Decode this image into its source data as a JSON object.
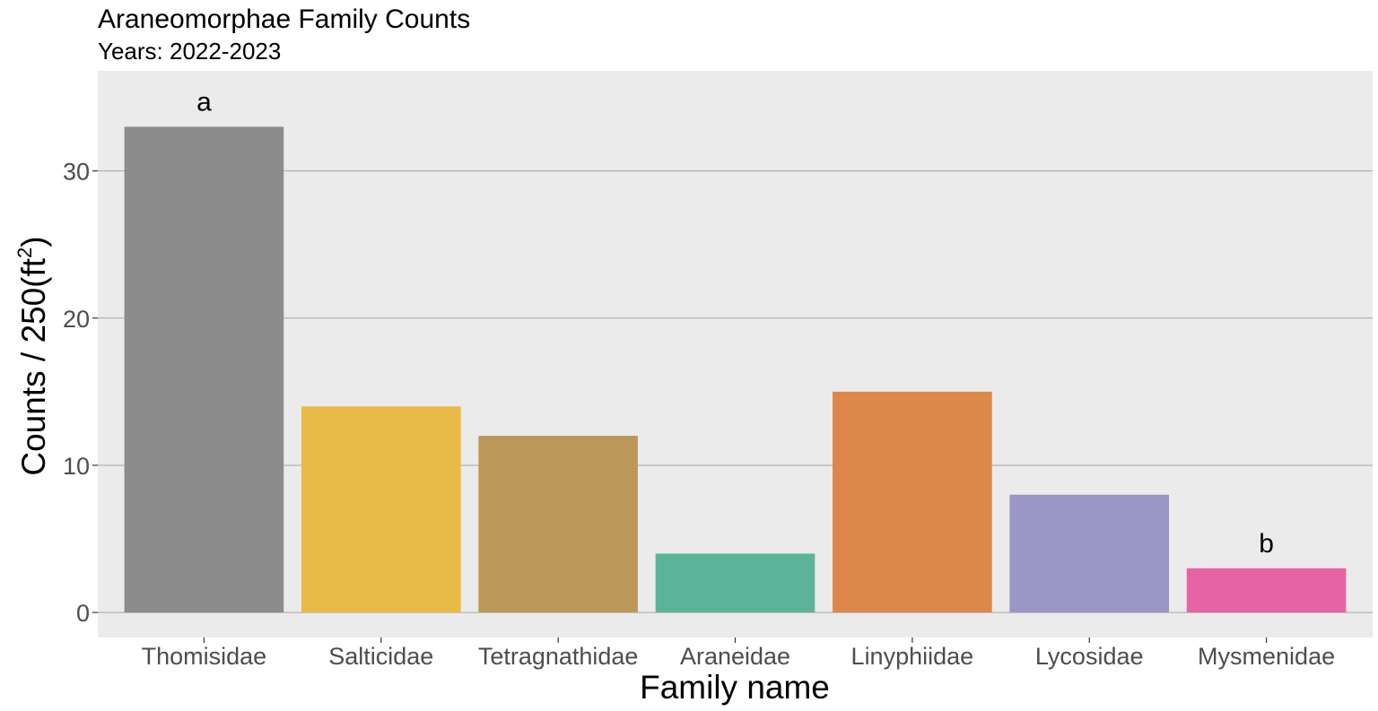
{
  "chart_data": {
    "type": "bar",
    "title": "Araneomorphae Family Counts",
    "subtitle": "Years: 2022-2023",
    "xlabel": "Family name",
    "ylabel": {
      "prefix": "Counts / 250(ft",
      "sup": "2",
      "suffix": ")"
    },
    "categories": [
      "Thomisidae",
      "Salticidae",
      "Tetragnathidae",
      "Araneidae",
      "Linyphiidae",
      "Lycosidae",
      "Mysmenidae"
    ],
    "values": [
      33,
      14,
      12,
      4,
      15,
      8,
      3
    ],
    "colors": [
      "#8c8c8c",
      "#e8bb48",
      "#bb975a",
      "#5bb49a",
      "#dd8748",
      "#9a96c6",
      "#e764a4"
    ],
    "significance_labels": [
      "a",
      "",
      "",
      "",
      "",
      "",
      "b"
    ],
    "ylim": [
      -1.7,
      36.8
    ],
    "yticks": [
      0,
      10,
      20,
      30
    ],
    "grid": true,
    "panel_background": "#ebebeb",
    "grid_color": "#a6a6a6",
    "legend": "none"
  }
}
